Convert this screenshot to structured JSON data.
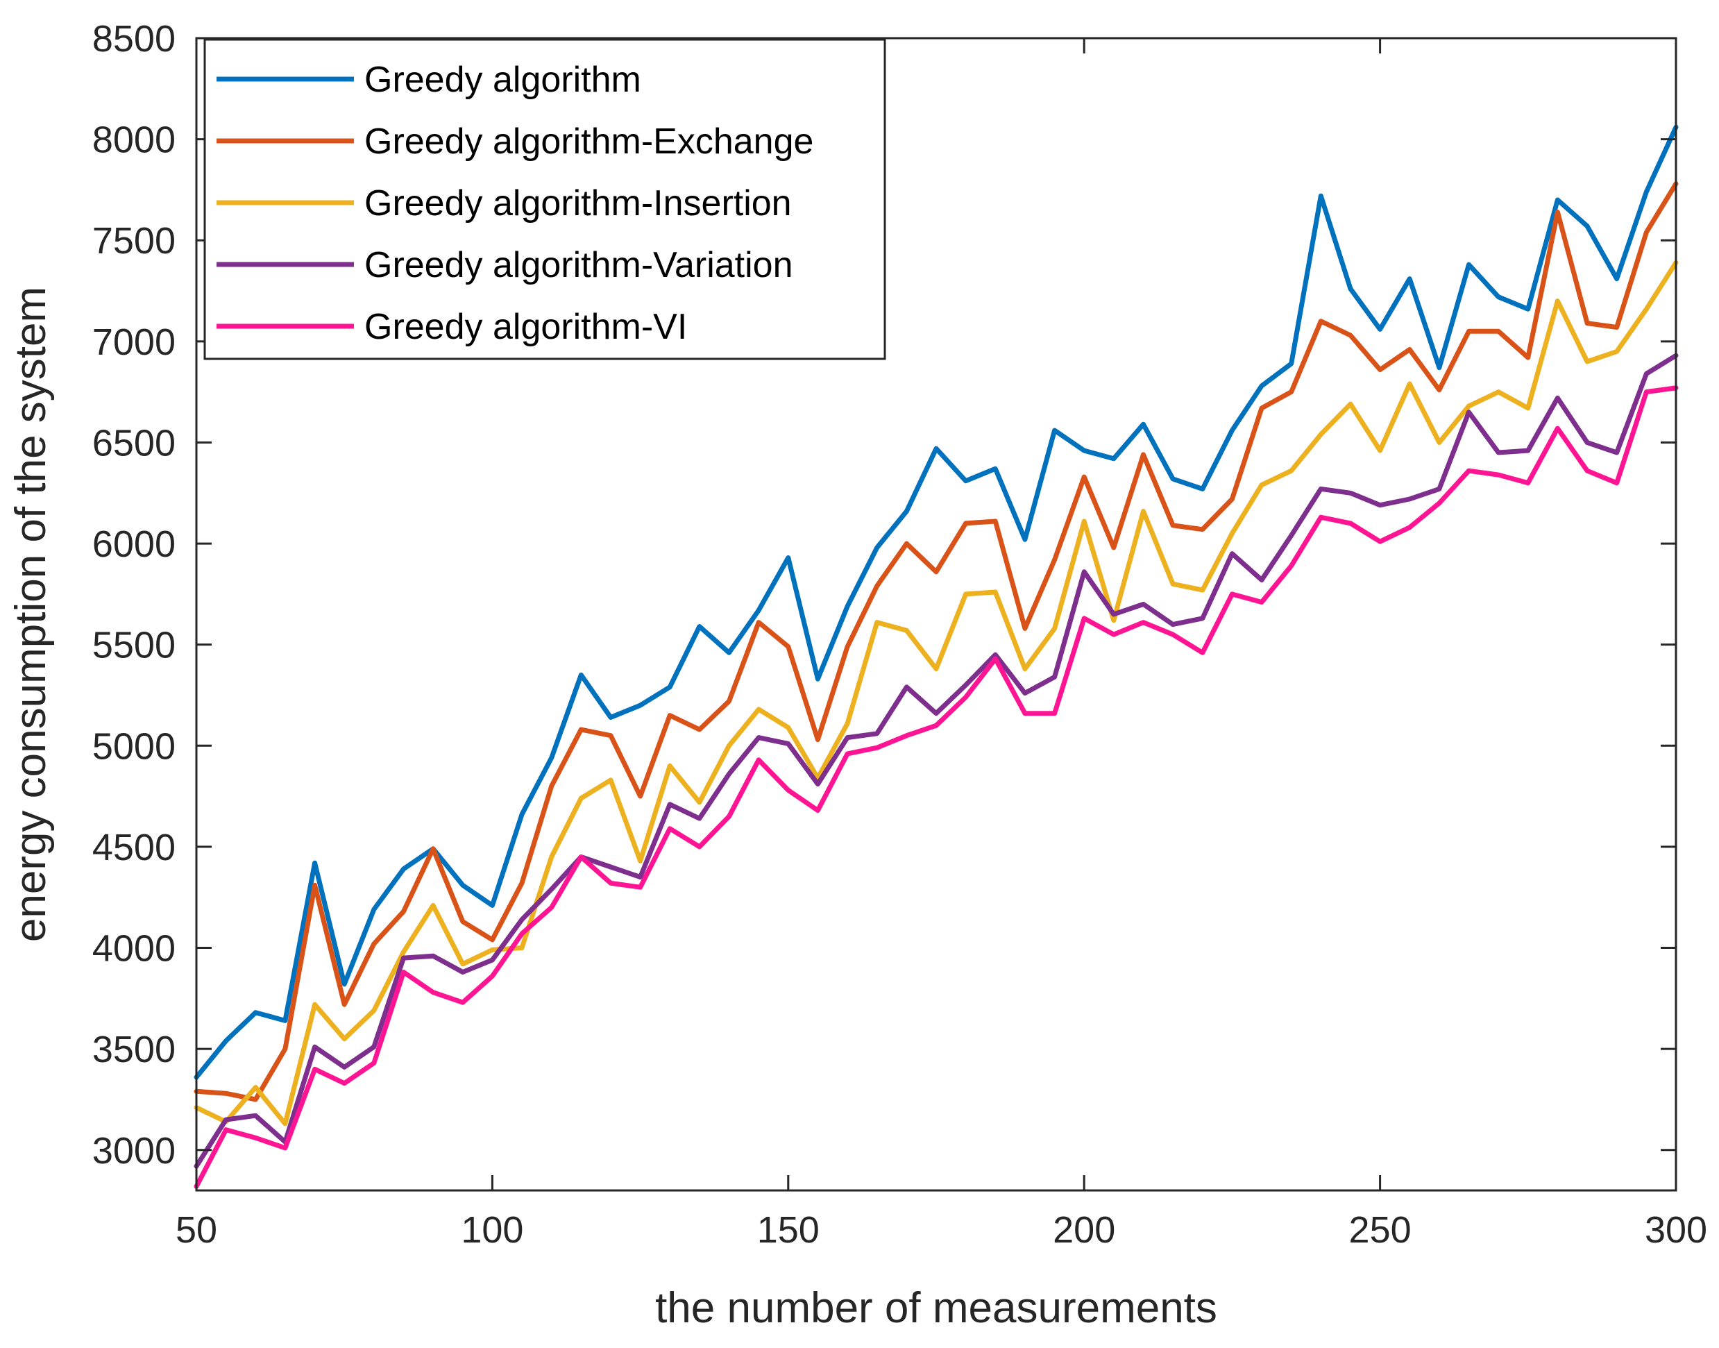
{
  "chart_data": {
    "type": "line",
    "title": "",
    "xlabel": "the number of measurements",
    "ylabel": "energy consumption of the system",
    "xlim": [
      50,
      300
    ],
    "ylim": [
      2800,
      8500
    ],
    "xticks": [
      50,
      100,
      150,
      200,
      250,
      300
    ],
    "yticks": [
      3000,
      3500,
      4000,
      4500,
      5000,
      5500,
      6000,
      6500,
      7000,
      7500,
      8000,
      8500
    ],
    "grid": false,
    "legend_position": "top-left",
    "x": [
      50,
      55,
      60,
      65,
      70,
      75,
      80,
      85,
      90,
      95,
      100,
      105,
      110,
      115,
      120,
      125,
      130,
      135,
      140,
      145,
      150,
      155,
      160,
      165,
      170,
      175,
      180,
      185,
      190,
      195,
      200,
      205,
      210,
      215,
      220,
      225,
      230,
      235,
      240,
      245,
      250,
      255,
      260,
      265,
      270,
      275,
      280,
      285,
      290,
      295,
      300
    ],
    "series": [
      {
        "name": "Greedy algorithm",
        "color": "#0072BD",
        "values": [
          3360,
          3540,
          3680,
          3640,
          4420,
          3820,
          4190,
          4390,
          4490,
          4310,
          4210,
          4660,
          4940,
          5350,
          5140,
          5200,
          5290,
          5590,
          5460,
          5670,
          5930,
          5330,
          5690,
          5980,
          6160,
          6470,
          6310,
          6370,
          6020,
          6560,
          6460,
          6420,
          6590,
          6320,
          6270,
          6560,
          6780,
          6890,
          7720,
          7260,
          7060,
          7310,
          6870,
          7380,
          7220,
          7160,
          7700,
          7570,
          7310,
          7740,
          8060
        ]
      },
      {
        "name": "Greedy algorithm-Exchange",
        "color": "#D95319",
        "values": [
          3290,
          3280,
          3250,
          3500,
          4310,
          3720,
          4020,
          4180,
          4490,
          4130,
          4040,
          4320,
          4800,
          5080,
          5050,
          4750,
          5150,
          5080,
          5220,
          5610,
          5490,
          5030,
          5490,
          5790,
          6000,
          5860,
          6100,
          6110,
          5580,
          5920,
          6330,
          5980,
          6440,
          6090,
          6070,
          6220,
          6670,
          6750,
          7100,
          7030,
          6860,
          6960,
          6760,
          7050,
          7050,
          6920,
          7640,
          7090,
          7070,
          7540,
          7780
        ]
      },
      {
        "name": "Greedy algorithm-Insertion",
        "color": "#EDB120",
        "values": [
          3210,
          3140,
          3310,
          3130,
          3720,
          3550,
          3690,
          3980,
          4210,
          3920,
          3990,
          4000,
          4450,
          4740,
          4830,
          4430,
          4900,
          4720,
          5000,
          5180,
          5090,
          4840,
          5110,
          5610,
          5570,
          5380,
          5750,
          5760,
          5380,
          5580,
          6110,
          5620,
          6160,
          5800,
          5770,
          6050,
          6290,
          6360,
          6540,
          6690,
          6460,
          6790,
          6500,
          6680,
          6750,
          6670,
          7200,
          6900,
          6950,
          7160,
          7390
        ]
      },
      {
        "name": "Greedy algorithm-Variation",
        "color": "#7E2F8E",
        "values": [
          2920,
          3150,
          3170,
          3040,
          3510,
          3410,
          3510,
          3950,
          3960,
          3880,
          3940,
          4140,
          4290,
          4450,
          4400,
          4350,
          4710,
          4640,
          4860,
          5040,
          5010,
          4810,
          5040,
          5060,
          5290,
          5160,
          5300,
          5450,
          5260,
          5340,
          5860,
          5650,
          5700,
          5600,
          5630,
          5950,
          5820,
          6040,
          6270,
          6250,
          6190,
          6220,
          6270,
          6650,
          6450,
          6460,
          6720,
          6500,
          6450,
          6840,
          6930
        ]
      },
      {
        "name": "Greedy algorithm-VI",
        "color": "#FF1493",
        "values": [
          2820,
          3100,
          3060,
          3010,
          3400,
          3330,
          3430,
          3880,
          3780,
          3730,
          3860,
          4070,
          4200,
          4450,
          4320,
          4300,
          4590,
          4500,
          4650,
          4930,
          4780,
          4680,
          4960,
          4990,
          5050,
          5100,
          5240,
          5430,
          5160,
          5160,
          5630,
          5550,
          5610,
          5550,
          5460,
          5750,
          5710,
          5890,
          6130,
          6100,
          6010,
          6080,
          6200,
          6360,
          6340,
          6300,
          6570,
          6360,
          6300,
          6750,
          6770
        ]
      }
    ]
  }
}
